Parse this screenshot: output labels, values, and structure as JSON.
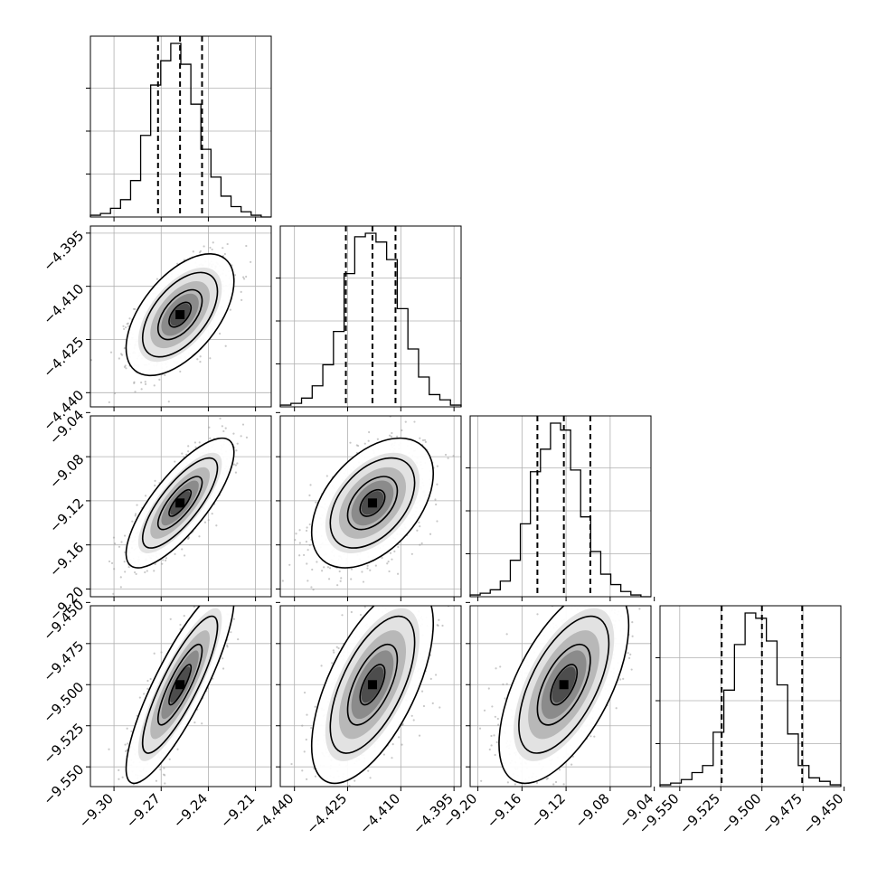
{
  "chart_data": {
    "type": "corner",
    "grid": true,
    "parameters": [
      {
        "range": [
          -9.315,
          -9.2
        ],
        "ticks": [
          "-9.30",
          "-9.27",
          "-9.24",
          "-9.21"
        ],
        "quantiles": [
          -9.272,
          -9.258,
          -9.244
        ],
        "hist": [
          1,
          2,
          5,
          10,
          21,
          47,
          76,
          90,
          100,
          88,
          65,
          39,
          23,
          12,
          6,
          3,
          1,
          0
        ]
      },
      {
        "range": [
          -4.444,
          -4.393
        ],
        "ticks": [
          "-4.440",
          "-4.425",
          "-4.410",
          "-4.395"
        ],
        "quantiles": [
          -4.4255,
          -4.418,
          -4.4115
        ],
        "hist": [
          1,
          2,
          5,
          12,
          24,
          43,
          76,
          97,
          99,
          94,
          84,
          56,
          33,
          17,
          7,
          4,
          1
        ]
      },
      {
        "range": [
          -9.207,
          -9.043
        ],
        "ticks": [
          "-9.20",
          "-9.16",
          "-9.12",
          "-9.08",
          "-9.04"
        ],
        "quantiles": [
          -9.146,
          -9.122,
          -9.098
        ],
        "hist": [
          1,
          2,
          4,
          9,
          21,
          42,
          72,
          85,
          100,
          96,
          73,
          46,
          26,
          13,
          7,
          3,
          1,
          0
        ]
      },
      {
        "range": [
          -9.562,
          -9.452
        ],
        "ticks": [
          "-9.550",
          "-9.525",
          "-9.500",
          "-9.475",
          "-9.450"
        ],
        "quantiles": [
          -9.5245,
          -9.5,
          -9.4755
        ],
        "hist": [
          1,
          2,
          4,
          8,
          12,
          31,
          55,
          81,
          99,
          96,
          83,
          58,
          30,
          12,
          5,
          3,
          1
        ]
      }
    ],
    "correlations": [
      [
        0,
        0.55,
        0.78,
        0.85
      ],
      [
        0.55,
        0,
        0.45,
        0.62
      ],
      [
        0.78,
        0.45,
        0,
        0.6
      ],
      [
        0.85,
        0.62,
        0.6,
        0
      ]
    ],
    "colors": {
      "hist": "#000000",
      "grid": "#b0b0b0",
      "points": "#9a9a9a",
      "contour": "#000000"
    }
  }
}
